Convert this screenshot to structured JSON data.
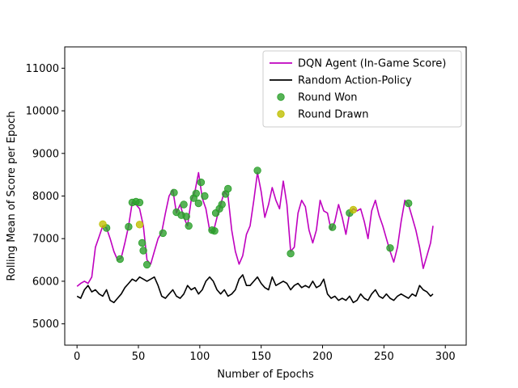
{
  "chart_data": {
    "type": "line",
    "title": "",
    "xlabel": "Number of Epochs",
    "ylabel": "Rolling Mean of Score per Epoch",
    "xlim": [
      -10,
      317
    ],
    "ylim": [
      4500,
      11500
    ],
    "xticks": [
      0,
      50,
      100,
      150,
      200,
      250,
      300
    ],
    "yticks": [
      5000,
      6000,
      7000,
      8000,
      9000,
      10000,
      11000
    ],
    "grid": false,
    "legend_position": "top-right",
    "series": [
      {
        "name": "DQN Agent (In-Game Score)",
        "kind": "line",
        "color": "#bf00bf",
        "x": [
          0,
          3,
          6,
          9,
          12,
          15,
          18,
          21,
          24,
          27,
          30,
          33,
          36,
          39,
          42,
          45,
          48,
          51,
          54,
          57,
          60,
          63,
          66,
          69,
          72,
          75,
          78,
          81,
          84,
          87,
          90,
          93,
          96,
          99,
          102,
          105,
          108,
          111,
          114,
          117,
          120,
          123,
          126,
          129,
          132,
          135,
          138,
          141,
          144,
          147,
          150,
          153,
          156,
          159,
          162,
          165,
          168,
          171,
          174,
          177,
          180,
          183,
          186,
          189,
          192,
          195,
          198,
          201,
          204,
          207,
          210,
          213,
          216,
          219,
          222,
          225,
          228,
          231,
          234,
          237,
          240,
          243,
          246,
          249,
          252,
          255,
          258,
          261,
          264,
          267,
          270,
          273,
          276,
          279,
          282,
          285,
          288,
          290
        ],
        "values": [
          5880,
          5950,
          6000,
          5950,
          6100,
          6800,
          7050,
          7300,
          7250,
          7000,
          6700,
          6500,
          6550,
          6900,
          7300,
          7850,
          7800,
          7700,
          7300,
          6500,
          6400,
          6700,
          7000,
          7150,
          7600,
          8000,
          8150,
          7600,
          7800,
          7500,
          7300,
          7900,
          8100,
          8550,
          7950,
          7700,
          7200,
          7150,
          7500,
          7800,
          8100,
          8000,
          7200,
          6700,
          6400,
          6600,
          7100,
          7300,
          7900,
          8550,
          8100,
          7500,
          7800,
          8200,
          7900,
          7700,
          8350,
          7800,
          6700,
          6800,
          7600,
          7900,
          7750,
          7200,
          6900,
          7200,
          7900,
          7650,
          7600,
          7200,
          7400,
          7800,
          7500,
          7100,
          7600,
          7700,
          7650,
          7700,
          7400,
          7000,
          7650,
          7900,
          7550,
          7300,
          7000,
          6700,
          6450,
          6800,
          7400,
          7900,
          7800,
          7500,
          7200,
          6800,
          6300,
          6600,
          6900,
          7300
        ]
      },
      {
        "name": "Random Action-Policy",
        "kind": "line",
        "color": "#000000",
        "x": [
          0,
          3,
          6,
          9,
          12,
          15,
          18,
          21,
          24,
          27,
          30,
          33,
          36,
          39,
          42,
          45,
          48,
          51,
          54,
          57,
          60,
          63,
          66,
          69,
          72,
          75,
          78,
          81,
          84,
          87,
          90,
          93,
          96,
          99,
          102,
          105,
          108,
          111,
          114,
          117,
          120,
          123,
          126,
          129,
          132,
          135,
          138,
          141,
          144,
          147,
          150,
          153,
          156,
          159,
          162,
          165,
          168,
          171,
          174,
          177,
          180,
          183,
          186,
          189,
          192,
          195,
          198,
          201,
          204,
          207,
          210,
          213,
          216,
          219,
          222,
          225,
          228,
          231,
          234,
          237,
          240,
          243,
          246,
          249,
          252,
          255,
          258,
          261,
          264,
          267,
          270,
          273,
          276,
          279,
          282,
          285,
          288,
          290
        ],
        "values": [
          5650,
          5600,
          5800,
          5900,
          5750,
          5800,
          5700,
          5650,
          5800,
          5550,
          5500,
          5600,
          5700,
          5850,
          5950,
          6050,
          6000,
          6100,
          6050,
          6000,
          6050,
          6100,
          5900,
          5650,
          5600,
          5700,
          5800,
          5650,
          5600,
          5700,
          5900,
          5800,
          5850,
          5700,
          5800,
          6000,
          6100,
          6000,
          5800,
          5700,
          5800,
          5650,
          5700,
          5800,
          6050,
          6150,
          5900,
          5900,
          6000,
          6100,
          5950,
          5850,
          5800,
          6100,
          5900,
          5950,
          6000,
          5950,
          5800,
          5900,
          5950,
          5850,
          5900,
          5850,
          6000,
          5850,
          5900,
          6050,
          5700,
          5600,
          5650,
          5550,
          5600,
          5550,
          5650,
          5500,
          5550,
          5700,
          5600,
          5550,
          5700,
          5800,
          5650,
          5600,
          5700,
          5600,
          5550,
          5650,
          5700,
          5650,
          5600,
          5700,
          5650,
          5900,
          5800,
          5750,
          5650,
          5700
        ]
      },
      {
        "name": "Round Won",
        "kind": "scatter",
        "color": "#2ca02c",
        "x": [
          24,
          35,
          42,
          45,
          48,
          51,
          53,
          54,
          57,
          70,
          79,
          81,
          85,
          87,
          89,
          91,
          95,
          97,
          99,
          101,
          104,
          110,
          112,
          113,
          116,
          118,
          121,
          123,
          147,
          174,
          208,
          222,
          255,
          270
        ],
        "values": [
          7250,
          6520,
          7280,
          7850,
          7870,
          7850,
          6900,
          6720,
          6390,
          7130,
          8080,
          7620,
          7550,
          7800,
          7520,
          7300,
          7950,
          8060,
          7830,
          8320,
          8000,
          7200,
          7180,
          7600,
          7700,
          7800,
          8050,
          8170,
          8600,
          6650,
          7270,
          7600,
          6780,
          7830
        ]
      },
      {
        "name": "Round Drawn",
        "kind": "scatter",
        "color": "#bfbf00",
        "x": [
          21,
          51,
          225
        ],
        "values": [
          7340,
          7330,
          7680
        ]
      }
    ]
  }
}
